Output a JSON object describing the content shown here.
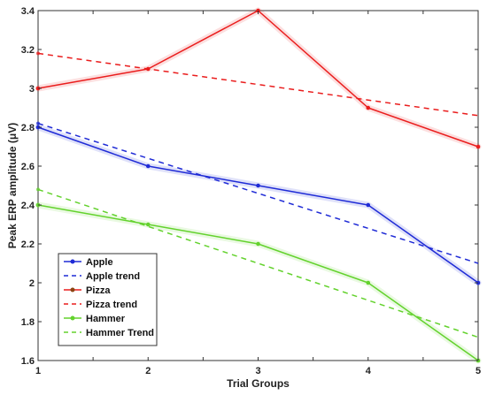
{
  "colors": {
    "apple": "#1f2bd6",
    "pizza": "#ea1d1d",
    "pizza_marker": "#8b4513",
    "hammer": "#63d22d",
    "axis": "#333333",
    "background": "#ffffff"
  },
  "chart_data": {
    "type": "line",
    "title": "",
    "xlabel": "Trial Groups",
    "ylabel": "Peak ERP amplitude (μV)",
    "xlim": [
      1,
      5
    ],
    "ylim": [
      1.6,
      3.4
    ],
    "x": [
      1,
      2,
      3,
      4,
      5
    ],
    "xticks": [
      "1",
      "1.5",
      "2",
      "2.5",
      "3",
      "3.5",
      "4",
      "4.5",
      "5"
    ],
    "yticks": [
      "1.6",
      "1.8",
      "2",
      "2.2",
      "2.4",
      "2.6",
      "2.8",
      "3",
      "3.2",
      "3.4"
    ],
    "grid": false,
    "legend_position": "bottom-left",
    "series": [
      {
        "name": "Apple",
        "style": "solid",
        "marker": true,
        "color": "#1f2bd6",
        "x": [
          1,
          2,
          3,
          4,
          5
        ],
        "values": [
          2.8,
          2.6,
          2.5,
          2.4,
          2.0
        ]
      },
      {
        "name": "Apple trend",
        "style": "dashed",
        "marker": false,
        "color": "#1f2bd6",
        "x": [
          1,
          5
        ],
        "values": [
          2.82,
          2.1
        ]
      },
      {
        "name": "Pizza",
        "style": "solid",
        "marker": true,
        "color": "#ea1d1d",
        "legend_marker_color": "#8b4513",
        "x": [
          1,
          2,
          3,
          4,
          5
        ],
        "values": [
          3.0,
          3.1,
          3.4,
          2.9,
          2.7
        ]
      },
      {
        "name": "Pizza trend",
        "style": "dashed",
        "marker": false,
        "color": "#ea1d1d",
        "x": [
          1,
          5
        ],
        "values": [
          3.18,
          2.86
        ]
      },
      {
        "name": "Hammer",
        "style": "solid",
        "marker": true,
        "color": "#63d22d",
        "x": [
          1,
          2,
          3,
          4,
          5
        ],
        "values": [
          2.4,
          2.3,
          2.2,
          2.0,
          1.6
        ]
      },
      {
        "name": "Hammer Trend",
        "style": "dashed",
        "marker": false,
        "color": "#63d22d",
        "x": [
          1,
          5
        ],
        "values": [
          2.48,
          1.72
        ]
      }
    ]
  }
}
